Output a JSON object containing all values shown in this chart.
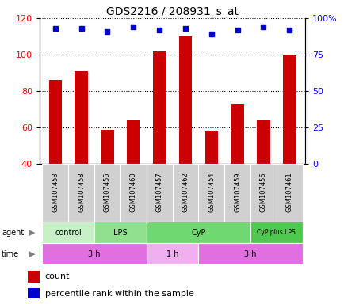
{
  "title": "GDS2216 / 208931_s_at",
  "samples": [
    "GSM107453",
    "GSM107458",
    "GSM107455",
    "GSM107460",
    "GSM107457",
    "GSM107462",
    "GSM107454",
    "GSM107459",
    "GSM107456",
    "GSM107461"
  ],
  "count_values": [
    86,
    91,
    59,
    64,
    102,
    110,
    58,
    73,
    64,
    100
  ],
  "percentile_values": [
    93,
    93,
    91,
    94,
    92,
    93,
    89,
    92,
    94,
    92
  ],
  "ylim_left": [
    40,
    120
  ],
  "ylim_right": [
    0,
    100
  ],
  "yticks_left": [
    40,
    60,
    80,
    100,
    120
  ],
  "ytick_labels_left": [
    "40",
    "60",
    "80",
    "100",
    "120"
  ],
  "yticks_right": [
    0,
    25,
    50,
    75,
    100
  ],
  "ytick_labels_right": [
    "0",
    "25",
    "50",
    "75",
    "100%"
  ],
  "agent_groups": [
    {
      "label": "control",
      "start": 0,
      "end": 2,
      "color": "#c8f0c8"
    },
    {
      "label": "LPS",
      "start": 2,
      "end": 4,
      "color": "#90e090"
    },
    {
      "label": "CyP",
      "start": 4,
      "end": 8,
      "color": "#70d870"
    },
    {
      "label": "CyP plus LPS",
      "start": 8,
      "end": 10,
      "color": "#50c850"
    }
  ],
  "time_groups": [
    {
      "label": "3 h",
      "start": 0,
      "end": 4,
      "color": "#e070e0"
    },
    {
      "label": "1 h",
      "start": 4,
      "end": 6,
      "color": "#f0b0f0"
    },
    {
      "label": "3 h",
      "start": 6,
      "end": 10,
      "color": "#e070e0"
    }
  ],
  "bar_color": "#cc0000",
  "dot_color": "#0000cc",
  "bar_width": 0.5,
  "sample_box_color": "#d0d0d0",
  "legend_items": [
    {
      "color": "#cc0000",
      "label": "count"
    },
    {
      "color": "#0000cc",
      "label": "percentile rank within the sample"
    }
  ]
}
